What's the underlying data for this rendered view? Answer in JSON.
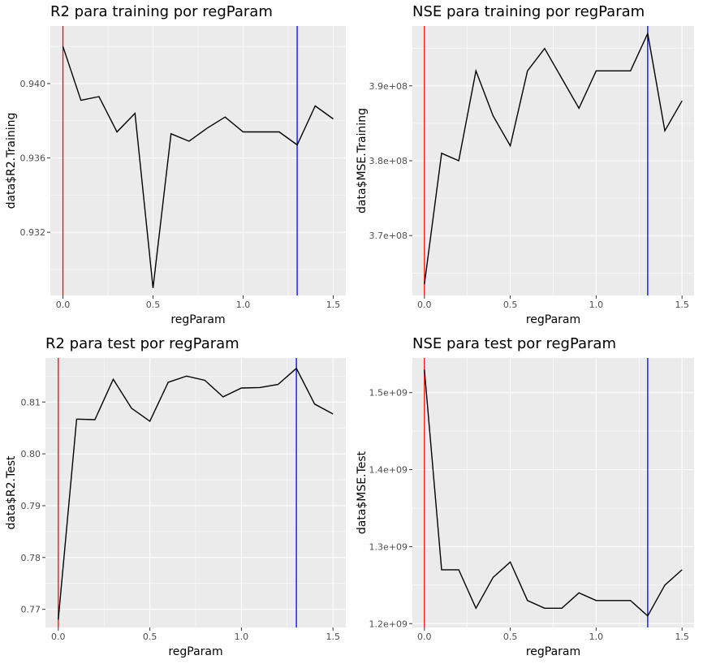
{
  "chart_data": [
    {
      "type": "line",
      "title": "R2 para training por regParam",
      "xlabel": "regParam",
      "ylabel": "data$R2.Training",
      "xlim": [
        -0.07,
        1.57
      ],
      "ylim": [
        0.9286,
        0.9431
      ],
      "x_ticks": [
        0.0,
        0.5,
        1.0,
        1.5
      ],
      "x_tick_labels": [
        "0.0",
        "0.5",
        "1.0",
        "1.5"
      ],
      "y_ticks": [
        0.932,
        0.936,
        0.94
      ],
      "y_tick_labels": [
        "0.932",
        "0.936",
        "0.940"
      ],
      "x": [
        0.0,
        0.1,
        0.2,
        0.3,
        0.4,
        0.5,
        0.6,
        0.7,
        0.8,
        0.9,
        1.0,
        1.1,
        1.2,
        1.3,
        1.4,
        1.5
      ],
      "values": [
        0.942,
        0.9391,
        0.9393,
        0.9374,
        0.9384,
        0.929,
        0.9373,
        0.9369,
        0.9376,
        0.9382,
        0.9374,
        0.9374,
        0.9374,
        0.9367,
        0.9388,
        0.9381
      ],
      "vlines": [
        {
          "x": 0.0,
          "color": "#ff0000"
        },
        {
          "x": 1.3,
          "color": "#0000ff"
        }
      ],
      "grid": true
    },
    {
      "type": "line",
      "title": "NSE para training por regParam",
      "xlabel": "regParam",
      "ylabel": "data$MSE.Training",
      "xlim": [
        -0.07,
        1.57
      ],
      "ylim": [
        362000000,
        398000000
      ],
      "x_ticks": [
        0.0,
        0.5,
        1.0,
        1.5
      ],
      "x_tick_labels": [
        "0.0",
        "0.5",
        "1.0",
        "1.5"
      ],
      "y_ticks": [
        370000000,
        380000000,
        390000000
      ],
      "y_tick_labels": [
        "3.7e+08",
        "3.8e+08",
        "3.9e+08"
      ],
      "x": [
        0.0,
        0.1,
        0.2,
        0.3,
        0.4,
        0.5,
        0.6,
        0.7,
        0.8,
        0.9,
        1.0,
        1.1,
        1.2,
        1.3,
        1.4,
        1.5
      ],
      "values": [
        363500000,
        381000000,
        380000000,
        392000000,
        386000000,
        382000000,
        392000000,
        395000000,
        391000000,
        387000000,
        392000000,
        392000000,
        392000000,
        397000000,
        384000000,
        388000000
      ],
      "vlines": [
        {
          "x": 0.0,
          "color": "#ff0000"
        },
        {
          "x": 1.3,
          "color": "#0000ff"
        }
      ],
      "grid": true
    },
    {
      "type": "line",
      "title": "R2 para test por regParam",
      "xlabel": "regParam",
      "ylabel": "data$R2.Test",
      "xlim": [
        -0.07,
        1.57
      ],
      "ylim": [
        0.7665,
        0.8185
      ],
      "x_ticks": [
        0.0,
        0.5,
        1.0,
        1.5
      ],
      "x_tick_labels": [
        "0.0",
        "0.5",
        "1.0",
        "1.5"
      ],
      "y_ticks": [
        0.77,
        0.78,
        0.79,
        0.8,
        0.81
      ],
      "y_tick_labels": [
        "0.77",
        "0.78",
        "0.79",
        "0.80",
        "0.81"
      ],
      "x": [
        0.0,
        0.1,
        0.2,
        0.3,
        0.4,
        0.5,
        0.6,
        0.7,
        0.8,
        0.9,
        1.0,
        1.1,
        1.2,
        1.3,
        1.4,
        1.5
      ],
      "values": [
        0.768,
        0.8067,
        0.8066,
        0.8144,
        0.8088,
        0.8063,
        0.8138,
        0.815,
        0.8142,
        0.811,
        0.8127,
        0.8128,
        0.8134,
        0.8165,
        0.8096,
        0.8077
      ],
      "vlines": [
        {
          "x": 0.0,
          "color": "#ff0000"
        },
        {
          "x": 1.3,
          "color": "#0000ff"
        }
      ],
      "grid": true
    },
    {
      "type": "line",
      "title": "NSE para test por regParam",
      "xlabel": "regParam",
      "ylabel": "data$MSE.Test",
      "xlim": [
        -0.07,
        1.57
      ],
      "ylim": [
        1195000000,
        1545000000
      ],
      "x_ticks": [
        0.0,
        0.5,
        1.0,
        1.5
      ],
      "x_tick_labels": [
        "0.0",
        "0.5",
        "1.0",
        "1.5"
      ],
      "y_ticks": [
        1200000000,
        1300000000,
        1400000000,
        1500000000
      ],
      "y_tick_labels": [
        "1.2e+09",
        "1.3e+09",
        "1.4e+09",
        "1.5e+09"
      ],
      "x": [
        0.0,
        0.1,
        0.2,
        0.3,
        0.4,
        0.5,
        0.6,
        0.7,
        0.8,
        0.9,
        1.0,
        1.1,
        1.2,
        1.3,
        1.4,
        1.5
      ],
      "values": [
        1530000000,
        1270000000,
        1270000000,
        1220000000,
        1260000000,
        1280000000,
        1230000000,
        1220000000,
        1220000000,
        1240000000,
        1230000000,
        1230000000,
        1230000000,
        1210000000,
        1250000000,
        1270000000
      ],
      "vlines": [
        {
          "x": 0.0,
          "color": "#ff0000"
        },
        {
          "x": 1.3,
          "color": "#0000ff"
        }
      ],
      "grid": true
    }
  ]
}
